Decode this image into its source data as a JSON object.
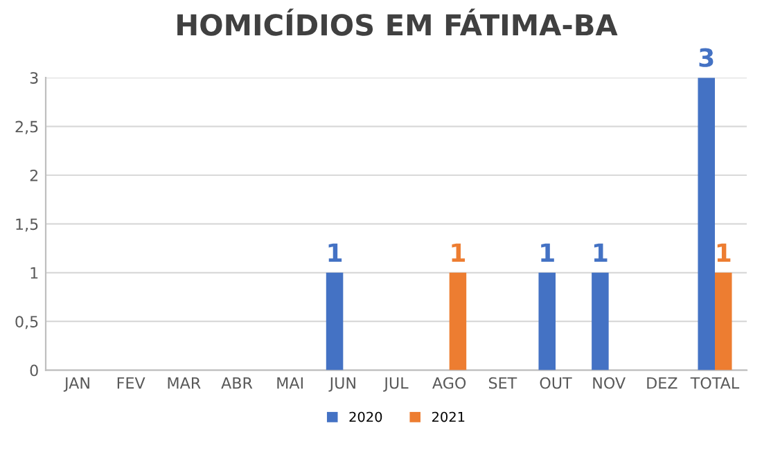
{
  "chart_data": {
    "type": "bar",
    "title": "HOMICÍDIOS EM FÁTIMA-BA",
    "categories": [
      "JAN",
      "FEV",
      "MAR",
      "ABR",
      "MAI",
      "JUN",
      "JUL",
      "AGO",
      "SET",
      "OUT",
      "NOV",
      "DEZ",
      "TOTAL"
    ],
    "series": [
      {
        "name": "2020",
        "color": "#4472c4",
        "values": [
          0,
          0,
          0,
          0,
          0,
          1,
          0,
          0,
          0,
          1,
          1,
          0,
          3
        ],
        "value_labels": [
          null,
          null,
          null,
          null,
          null,
          "1",
          null,
          null,
          null,
          "1",
          "1",
          null,
          "3"
        ]
      },
      {
        "name": "2021",
        "color": "#ed7d31",
        "values": [
          0,
          0,
          0,
          0,
          0,
          0,
          0,
          1,
          0,
          0,
          0,
          0,
          1
        ],
        "value_labels": [
          null,
          null,
          null,
          null,
          null,
          null,
          null,
          "1",
          null,
          null,
          null,
          null,
          "1"
        ]
      }
    ],
    "ylim": [
      0,
      3
    ],
    "yticks": [
      0,
      {
        "value": 0.5,
        "label": "0,5"
      },
      1,
      {
        "value": 1.5,
        "label": "1,5"
      },
      2,
      {
        "value": 2.5,
        "label": "2,5"
      },
      3
    ],
    "grid": "y",
    "legend": "bottom"
  }
}
